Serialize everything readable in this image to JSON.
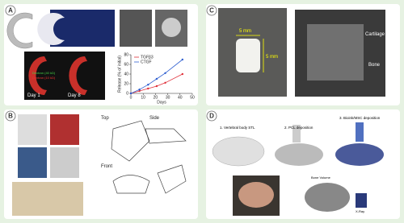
{
  "panels": [
    {
      "label": "A",
      "texts": [
        "Day 1",
        "Day 8",
        "Dextran (40 kD)",
        "Dextran (10 kD)"
      ]
    },
    {
      "label": "B",
      "texts": [
        "Top",
        "Side",
        "Front"
      ]
    },
    {
      "label": "C",
      "texts": [
        "5 mm",
        "5 mm",
        "Cartilage",
        "Bone"
      ]
    },
    {
      "label": "D",
      "texts": [
        "1. Vertebral body STL",
        "2. PCL deposition",
        "3. Bioink/MSC deposition",
        "Bone Volume",
        "X-Ray"
      ]
    }
  ],
  "chart_data": {
    "type": "line",
    "x_label": "Days",
    "y_label": "Release (% of initial)",
    "x": [
      0,
      7,
      14,
      21,
      28,
      42
    ],
    "series": [
      {
        "name": "TGFβ3",
        "color": "#e0303a",
        "values": [
          0,
          5,
          10,
          15,
          22,
          40
        ]
      },
      {
        "name": "CTGF",
        "color": "#2f5fd0",
        "values": [
          0,
          8,
          18,
          30,
          42,
          70
        ]
      }
    ],
    "xlim": [
      0,
      50
    ],
    "xticks": [
      0,
      10,
      20,
      30,
      40,
      50
    ],
    "ylim": [
      0,
      80
    ],
    "yticks": [
      0,
      20,
      40,
      60,
      80
    ]
  }
}
